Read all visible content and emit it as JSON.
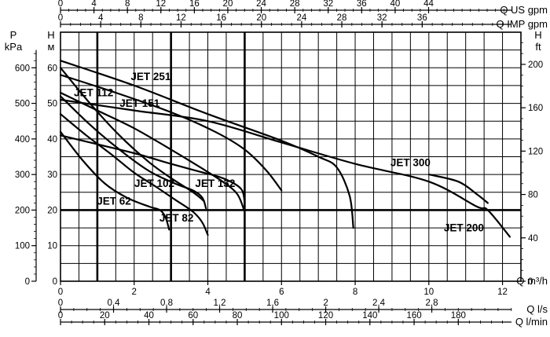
{
  "chart_data": {
    "type": "line",
    "x_primary": {
      "unit": "Q m³/h",
      "range": [
        0,
        12.5
      ],
      "ticks": [
        "0",
        "2",
        "4",
        "6",
        "8",
        "10",
        "12"
      ],
      "tick_values": [
        0,
        2,
        4,
        6,
        8,
        10,
        12
      ]
    },
    "x_top_axes": [
      {
        "unit": "Q US gpm",
        "factor": 4.4029,
        "ticks": [
          "0",
          "4",
          "8",
          "12",
          "16",
          "20",
          "24",
          "28",
          "32",
          "36",
          "40",
          "44"
        ],
        "tick_values": [
          0,
          4,
          8,
          12,
          16,
          20,
          24,
          28,
          32,
          36,
          40,
          44
        ]
      },
      {
        "unit": "Q IMP gpm",
        "factor": 3.6662,
        "ticks": [
          "0",
          "4",
          "8",
          "12",
          "16",
          "20",
          "24",
          "28",
          "32",
          "36"
        ],
        "tick_values": [
          0,
          4,
          8,
          12,
          16,
          20,
          24,
          28,
          32,
          36
        ]
      }
    ],
    "x_bottom_axes": [
      {
        "unit": "Q l/s",
        "factor": 0.27778,
        "ticks": [
          "0",
          "0,4",
          "0,8",
          "1,2",
          "1,6",
          "2",
          "2,4",
          "2,8"
        ],
        "tick_values": [
          0,
          0.4,
          0.8,
          1.2,
          1.6,
          2,
          2.4,
          2.8
        ]
      },
      {
        "unit": "Q l/min",
        "factor": 16.667,
        "ticks": [
          "0",
          "20",
          "40",
          "60",
          "80",
          "100",
          "120",
          "140",
          "160",
          "180"
        ],
        "tick_values": [
          0,
          20,
          40,
          60,
          80,
          100,
          120,
          140,
          160,
          180
        ]
      }
    ],
    "y_primary": {
      "unit_top": "H",
      "unit_bottom": "м",
      "range": [
        0,
        70
      ],
      "ticks": [
        "0",
        "10",
        "20",
        "30",
        "40",
        "50",
        "60"
      ],
      "tick_values": [
        0,
        10,
        20,
        30,
        40,
        50,
        60
      ]
    },
    "y_left_secondary": {
      "unit_top": "P",
      "unit_bottom": "kPa",
      "factor": 10,
      "ticks": [
        "0",
        "100",
        "200",
        "300",
        "400",
        "500",
        "600"
      ],
      "tick_values": [
        0,
        100,
        200,
        300,
        400,
        500,
        600
      ]
    },
    "y_right_secondary": {
      "unit_top": "H",
      "unit_bottom": "ft",
      "factor": 3.2808,
      "ticks": [
        "0",
        "40",
        "80",
        "120",
        "160",
        "200"
      ],
      "tick_values": [
        0,
        40,
        80,
        120,
        160,
        200
      ]
    },
    "grid": true,
    "bold_hline": 20,
    "series": [
      {
        "name": "JET 62",
        "x": [
          0,
          0.6,
          1.2,
          1.8,
          2.4,
          2.7,
          2.85,
          2.95
        ],
        "y": [
          42,
          34,
          27.5,
          23.5,
          21,
          20,
          18,
          14.5
        ],
        "label": {
          "x": 1.45,
          "y": 21.5
        }
      },
      {
        "name": "JET 82",
        "x": [
          0,
          0.7,
          1.4,
          2.0,
          2.6,
          3.1,
          3.6,
          3.85,
          4.0
        ],
        "y": [
          47,
          41,
          35.5,
          30.5,
          26.5,
          23,
          19.5,
          16.5,
          13
        ],
        "label": {
          "x": 3.15,
          "y": 16.8
        }
      },
      {
        "name": "JET 102",
        "x": [
          0,
          0.8,
          1.6,
          2.4,
          3.1,
          3.6,
          3.85,
          3.95
        ],
        "y": [
          52,
          44,
          37,
          31,
          27.5,
          25.5,
          23.5,
          20.5
        ],
        "label": {
          "x": 2.55,
          "y": 26.5
        }
      },
      {
        "name": "JET 112",
        "x": [
          0,
          0.8,
          1.6,
          2.4,
          3.0,
          3.6,
          3.9
        ],
        "y": [
          60,
          50,
          41,
          33.5,
          29,
          25,
          22.5
        ],
        "label": {
          "x": 0.9,
          "y": 52
        }
      },
      {
        "name": "JET 132",
        "x": [
          0,
          1.0,
          2.0,
          3.0,
          3.7,
          4.4,
          4.9,
          5.0
        ],
        "y": [
          41,
          38.5,
          36,
          33,
          31,
          29,
          26,
          22
        ],
        "label": {
          "x": 4.2,
          "y": 26.5
        }
      },
      {
        "name": "JET 151",
        "x": [
          0,
          1.0,
          2.0,
          3.0,
          3.8,
          4.4,
          4.8,
          5.0
        ],
        "y": [
          53,
          48,
          43,
          37,
          32,
          28,
          24.5,
          19.5
        ],
        "label": {
          "x": 2.15,
          "y": 49
        }
      },
      {
        "name": "JET 251",
        "x": [
          0,
          1.5,
          3.0,
          4.2,
          5.0,
          5.6,
          6.0
        ],
        "y": [
          58,
          53,
          47.5,
          42,
          37,
          31,
          25.5
        ],
        "label": {
          "x": 2.45,
          "y": 56.5
        }
      },
      {
        "name": "JET 300",
        "x": [
          0,
          2.0,
          4.0,
          6.0,
          7.0,
          7.5,
          7.85,
          7.95
        ],
        "y": [
          62,
          55,
          47,
          39.5,
          35,
          32,
          24,
          15
        ],
        "label": {
          "x": 9.5,
          "y": 32.3
        }
      },
      {
        "name": "JET 200",
        "x": [
          0,
          2.0,
          4.0,
          6.0,
          8.0,
          10.0,
          11.3,
          11.6,
          12.2
        ],
        "y": [
          51,
          48,
          45,
          39,
          33,
          28,
          21,
          20,
          12.5
        ],
        "label": {
          "x": 10.95,
          "y": 14
        }
      }
    ],
    "extra_curves": [
      {
        "x": [
          10.0,
          10.8,
          11.3,
          11.6
        ],
        "y": [
          30,
          28,
          24.5,
          22
        ]
      }
    ]
  }
}
